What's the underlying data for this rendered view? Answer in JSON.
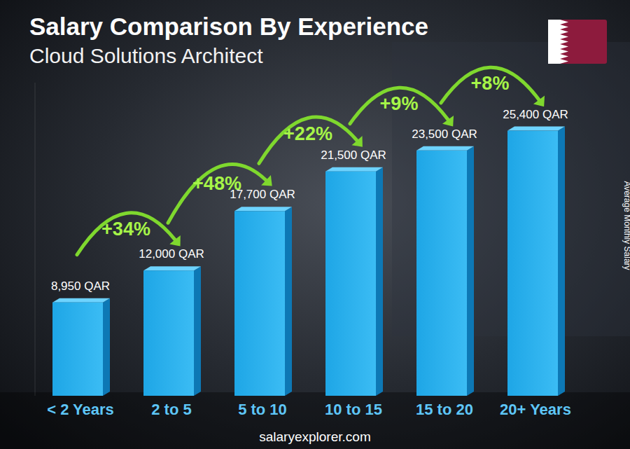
{
  "chart_data": {
    "type": "bar",
    "title": "Salary Comparison By Experience",
    "subtitle": "Cloud Solutions Architect",
    "categories": [
      "< 2 Years",
      "2 to 5",
      "5 to 10",
      "10 to 15",
      "15 to 20",
      "20+ Years"
    ],
    "values": [
      8950,
      12000,
      17700,
      21500,
      23500,
      25400
    ],
    "value_labels": [
      "8,950 QAR",
      "12,000 QAR",
      "17,700 QAR",
      "21,500 QAR",
      "23,500 QAR",
      "25,400 QAR"
    ],
    "data_labels": true,
    "color": "#1ea6e6",
    "ylim": [
      0,
      30000
    ],
    "ylabel": "Average Monthly Salary",
    "tick_labels": "x",
    "grid": false,
    "annotations": [
      "+34%",
      "+48%",
      "+22%",
      "+9%",
      "+8%"
    ],
    "source": "salaryexplorer.com"
  }
}
